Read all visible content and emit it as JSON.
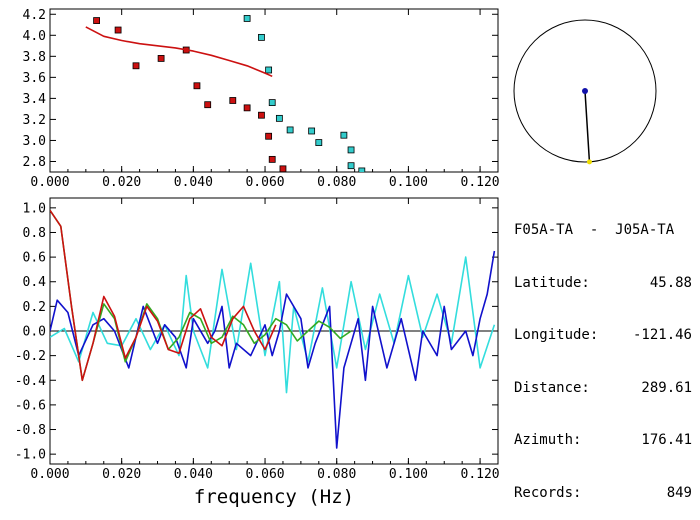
{
  "chart_data": [
    {
      "type": "scatter",
      "xlim": [
        0.0,
        0.125
      ],
      "ylim": [
        2.7,
        4.25
      ],
      "xticks": [
        "0.000",
        "0.020",
        "0.040",
        "0.060",
        "0.080",
        "0.100",
        "0.120"
      ],
      "yticks": [
        "2.8",
        "3.0",
        "3.2",
        "3.4",
        "3.6",
        "3.8",
        "4.0",
        "4.2"
      ],
      "series": [
        {
          "color": "#cc1111",
          "marker": "square",
          "points": [
            [
              0.013,
              4.14
            ],
            [
              0.019,
              4.05
            ],
            [
              0.024,
              3.71
            ],
            [
              0.031,
              3.78
            ],
            [
              0.038,
              3.86
            ],
            [
              0.041,
              3.52
            ],
            [
              0.044,
              3.34
            ],
            [
              0.051,
              3.38
            ],
            [
              0.055,
              3.31
            ],
            [
              0.059,
              3.24
            ],
            [
              0.061,
              3.04
            ],
            [
              0.062,
              2.82
            ],
            [
              0.065,
              2.73
            ]
          ]
        },
        {
          "color": "#33cccc",
          "marker": "square",
          "points": [
            [
              0.055,
              4.16
            ],
            [
              0.059,
              3.98
            ],
            [
              0.061,
              3.67
            ],
            [
              0.062,
              3.36
            ],
            [
              0.064,
              3.21
            ],
            [
              0.067,
              3.1
            ],
            [
              0.073,
              3.09
            ],
            [
              0.075,
              2.98
            ],
            [
              0.082,
              3.05
            ],
            [
              0.084,
              2.91
            ],
            [
              0.084,
              2.76
            ],
            [
              0.087,
              2.71
            ]
          ]
        },
        {
          "color": "#cc1111",
          "type": "line",
          "points": [
            [
              0.01,
              4.08
            ],
            [
              0.015,
              3.99
            ],
            [
              0.02,
              3.95
            ],
            [
              0.025,
              3.92
            ],
            [
              0.03,
              3.9
            ],
            [
              0.035,
              3.88
            ],
            [
              0.04,
              3.85
            ],
            [
              0.045,
              3.81
            ],
            [
              0.05,
              3.76
            ],
            [
              0.055,
              3.71
            ],
            [
              0.06,
              3.64
            ],
            [
              0.062,
              3.61
            ]
          ]
        }
      ]
    },
    {
      "type": "line",
      "xlabel": "frequency (Hz)",
      "xlim": [
        0.0,
        0.125
      ],
      "ylim": [
        -1.08,
        1.08
      ],
      "xticks": [
        "0.000",
        "0.020",
        "0.040",
        "0.060",
        "0.080",
        "0.100",
        "0.120"
      ],
      "yticks": [
        "-1.0",
        "-0.8",
        "-0.6",
        "-0.4",
        "-0.2",
        "0.0",
        "0.2",
        "0.4",
        "0.6",
        "0.8",
        "1.0"
      ],
      "zero_line": true,
      "series": [
        {
          "color": "#33dddd",
          "points": [
            [
              0.0,
              -0.05
            ],
            [
              0.004,
              0.02
            ],
            [
              0.008,
              -0.25
            ],
            [
              0.012,
              0.15
            ],
            [
              0.016,
              -0.1
            ],
            [
              0.02,
              -0.12
            ],
            [
              0.024,
              0.1
            ],
            [
              0.028,
              -0.15
            ],
            [
              0.032,
              0.05
            ],
            [
              0.036,
              -0.2
            ],
            [
              0.038,
              0.45
            ],
            [
              0.04,
              0.0
            ],
            [
              0.044,
              -0.3
            ],
            [
              0.048,
              0.5
            ],
            [
              0.052,
              -0.15
            ],
            [
              0.056,
              0.55
            ],
            [
              0.06,
              -0.2
            ],
            [
              0.064,
              0.4
            ],
            [
              0.066,
              -0.5
            ],
            [
              0.068,
              0.2
            ],
            [
              0.072,
              -0.25
            ],
            [
              0.076,
              0.35
            ],
            [
              0.08,
              -0.3
            ],
            [
              0.084,
              0.4
            ],
            [
              0.088,
              -0.15
            ],
            [
              0.092,
              0.3
            ],
            [
              0.096,
              -0.1
            ],
            [
              0.1,
              0.45
            ],
            [
              0.104,
              -0.05
            ],
            [
              0.108,
              0.3
            ],
            [
              0.112,
              -0.1
            ],
            [
              0.116,
              0.6
            ],
            [
              0.12,
              -0.3
            ],
            [
              0.124,
              0.05
            ]
          ]
        },
        {
          "color": "#1111cc",
          "points": [
            [
              0.0,
              0.0
            ],
            [
              0.002,
              0.25
            ],
            [
              0.005,
              0.15
            ],
            [
              0.008,
              -0.2
            ],
            [
              0.012,
              0.05
            ],
            [
              0.015,
              0.1
            ],
            [
              0.018,
              0.0
            ],
            [
              0.022,
              -0.3
            ],
            [
              0.026,
              0.2
            ],
            [
              0.03,
              -0.1
            ],
            [
              0.032,
              0.05
            ],
            [
              0.035,
              -0.05
            ],
            [
              0.038,
              -0.3
            ],
            [
              0.04,
              0.1
            ],
            [
              0.044,
              -0.1
            ],
            [
              0.046,
              0.0
            ],
            [
              0.048,
              0.2
            ],
            [
              0.05,
              -0.3
            ],
            [
              0.052,
              -0.1
            ],
            [
              0.056,
              -0.2
            ],
            [
              0.06,
              0.05
            ],
            [
              0.062,
              -0.2
            ],
            [
              0.064,
              0.0
            ],
            [
              0.066,
              0.3
            ],
            [
              0.07,
              0.1
            ],
            [
              0.072,
              -0.3
            ],
            [
              0.074,
              -0.1
            ],
            [
              0.078,
              0.2
            ],
            [
              0.08,
              -0.95
            ],
            [
              0.082,
              -0.3
            ],
            [
              0.086,
              0.1
            ],
            [
              0.088,
              -0.4
            ],
            [
              0.09,
              0.2
            ],
            [
              0.094,
              -0.3
            ],
            [
              0.098,
              0.1
            ],
            [
              0.102,
              -0.4
            ],
            [
              0.104,
              0.0
            ],
            [
              0.108,
              -0.2
            ],
            [
              0.11,
              0.2
            ],
            [
              0.112,
              -0.15
            ],
            [
              0.116,
              0.0
            ],
            [
              0.118,
              -0.2
            ],
            [
              0.12,
              0.1
            ],
            [
              0.122,
              0.3
            ],
            [
              0.124,
              0.65
            ]
          ]
        },
        {
          "color": "#33aa22",
          "points": [
            [
              0.0,
              0.98
            ],
            [
              0.003,
              0.85
            ],
            [
              0.006,
              0.2
            ],
            [
              0.009,
              -0.4
            ],
            [
              0.012,
              -0.1
            ],
            [
              0.015,
              0.22
            ],
            [
              0.018,
              0.1
            ],
            [
              0.021,
              -0.25
            ],
            [
              0.024,
              -0.05
            ],
            [
              0.027,
              0.22
            ],
            [
              0.03,
              0.1
            ],
            [
              0.033,
              -0.15
            ],
            [
              0.036,
              -0.05
            ],
            [
              0.039,
              0.15
            ],
            [
              0.042,
              0.1
            ],
            [
              0.045,
              -0.1
            ],
            [
              0.048,
              -0.05
            ],
            [
              0.051,
              0.12
            ],
            [
              0.054,
              0.05
            ],
            [
              0.057,
              -0.1
            ],
            [
              0.06,
              -0.03
            ],
            [
              0.063,
              0.1
            ],
            [
              0.066,
              0.05
            ],
            [
              0.069,
              -0.08
            ],
            [
              0.072,
              0.0
            ],
            [
              0.075,
              0.08
            ],
            [
              0.078,
              0.03
            ],
            [
              0.081,
              -0.06
            ],
            [
              0.084,
              0.0
            ]
          ]
        },
        {
          "color": "#cc1111",
          "points": [
            [
              0.0,
              0.98
            ],
            [
              0.003,
              0.85
            ],
            [
              0.006,
              0.2
            ],
            [
              0.009,
              -0.4
            ],
            [
              0.012,
              -0.1
            ],
            [
              0.015,
              0.28
            ],
            [
              0.018,
              0.12
            ],
            [
              0.021,
              -0.22
            ],
            [
              0.024,
              -0.05
            ],
            [
              0.027,
              0.2
            ],
            [
              0.03,
              0.08
            ],
            [
              0.033,
              -0.15
            ],
            [
              0.036,
              -0.18
            ],
            [
              0.039,
              0.1
            ],
            [
              0.042,
              0.18
            ],
            [
              0.045,
              -0.05
            ],
            [
              0.048,
              -0.12
            ],
            [
              0.051,
              0.1
            ],
            [
              0.054,
              0.2
            ],
            [
              0.057,
              0.0
            ],
            [
              0.06,
              -0.15
            ],
            [
              0.063,
              0.05
            ]
          ]
        }
      ]
    }
  ],
  "polar": {
    "azimuth_deg": 176.41,
    "ratio": 0.86,
    "station_color": "#1111aa",
    "source_color": "#eedd00"
  },
  "info": {
    "title": "F05A-TA  -  J05A-TA",
    "rows": [
      {
        "label": "Latitude:",
        "value": "45.88"
      },
      {
        "label": "Longitude:",
        "value": "-121.46"
      },
      {
        "label": "Distance:",
        "value": "289.61"
      },
      {
        "label": "Azimuth:",
        "value": "176.41"
      },
      {
        "label": "Records:",
        "value": "849"
      }
    ]
  }
}
